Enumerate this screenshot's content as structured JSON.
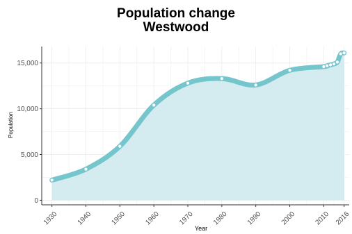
{
  "chart_data": {
    "type": "area",
    "title_lines": [
      "Population change",
      "Westwood"
    ],
    "xlabel": "Year",
    "ylabel": "Population",
    "xlim": [
      1927,
      2017.5
    ],
    "ylim": [
      -500,
      16800
    ],
    "x_ticks": [
      1930,
      1940,
      1950,
      1960,
      1970,
      1980,
      1990,
      2000,
      2010,
      2016
    ],
    "y_ticks": [
      0,
      5000,
      10000,
      15000
    ],
    "y_tick_labels": [
      "0",
      "5,000",
      "10,000",
      "15,000"
    ],
    "grid": true,
    "legend": "none",
    "series": [
      {
        "x": [
          1930,
          1940,
          1950,
          1960,
          1970,
          1980,
          1990,
          2000,
          2010,
          2011,
          2012,
          2013,
          2014,
          2015,
          2016
        ],
        "y": [
          2200,
          3400,
          5900,
          10400,
          12800,
          13300,
          12600,
          14200,
          14600,
          14700,
          14800,
          14900,
          15100,
          16000,
          16100
        ]
      }
    ],
    "colors": {
      "line": "#75c5cc",
      "fill": "#d4ecef",
      "point_fill": "#ffffff",
      "point_stroke": "#75c5cc",
      "grid": "#ebebeb",
      "axis": "#333333",
      "tick_text": "#4d4d4d"
    }
  }
}
